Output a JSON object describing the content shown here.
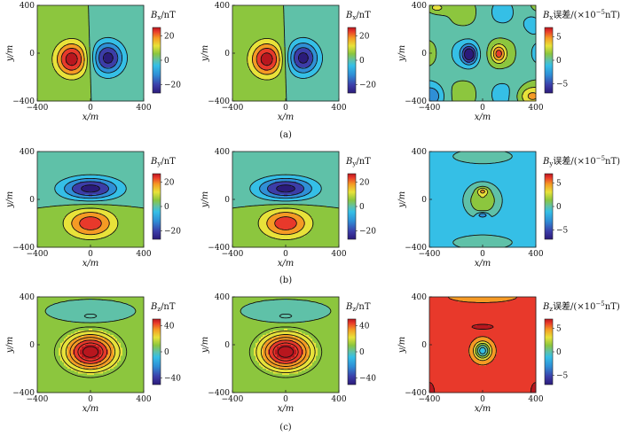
{
  "captions": [
    "(a)",
    "(b)",
    "(c)"
  ],
  "panel_rows": [
    {
      "caption": "(a)",
      "panels": [
        {
          "kind": "field",
          "component": "x",
          "cb_label": "Bx/nT",
          "cb_sym": "B",
          "cb_sub": "x",
          "cb_rest": "/nT",
          "cb_ticks": [
            "20",
            "0",
            "−20"
          ],
          "cb_tick_values": [
            20,
            0,
            -20
          ],
          "cb_range": [
            -27,
            27
          ]
        },
        {
          "kind": "field",
          "component": "x",
          "cb_label": "Bx/nT",
          "cb_sym": "B",
          "cb_sub": "x",
          "cb_rest": "/nT",
          "cb_ticks": [
            "20",
            "0",
            "−20"
          ],
          "cb_tick_values": [
            20,
            0,
            -20
          ],
          "cb_range": [
            -27,
            27
          ]
        },
        {
          "kind": "error",
          "component": "x",
          "cb_label": "Bx误差/(×10⁻⁵nT)",
          "cb_sym": "B",
          "cb_sub": "x",
          "cb_rest": "误差/(×10",
          "cb_exp": "−5",
          "cb_unit": "nT)",
          "cb_ticks": [
            "5",
            "0",
            "−5"
          ],
          "cb_tick_values": [
            5,
            0,
            -5
          ],
          "cb_range": [
            -7,
            7
          ]
        }
      ]
    },
    {
      "caption": "(b)",
      "panels": [
        {
          "kind": "field",
          "component": "y",
          "cb_label": "By/nT",
          "cb_sym": "B",
          "cb_sub": "y",
          "cb_rest": "/nT",
          "cb_ticks": [
            "20",
            "0",
            "−20"
          ],
          "cb_tick_values": [
            20,
            0,
            -20
          ],
          "cb_range": [
            -27,
            27
          ]
        },
        {
          "kind": "field",
          "component": "y",
          "cb_label": "By/nT",
          "cb_sym": "B",
          "cb_sub": "y",
          "cb_rest": "/nT",
          "cb_ticks": [
            "20",
            "0",
            "−20"
          ],
          "cb_tick_values": [
            20,
            0,
            -20
          ],
          "cb_range": [
            -27,
            27
          ]
        },
        {
          "kind": "error",
          "component": "y",
          "cb_label": "By误差/(×10⁻⁵nT)",
          "cb_sym": "B",
          "cb_sub": "y",
          "cb_rest": "误差/(×10",
          "cb_exp": "−5",
          "cb_unit": "nT)",
          "cb_ticks": [
            "5",
            "0",
            "−5"
          ],
          "cb_tick_values": [
            5,
            0,
            -5
          ],
          "cb_range": [
            -7,
            7
          ]
        }
      ]
    },
    {
      "caption": "(c)",
      "panels": [
        {
          "kind": "field",
          "component": "z",
          "cb_label": "Bz/nT",
          "cb_sym": "B",
          "cb_sub": "z",
          "cb_rest": "/nT",
          "cb_ticks": [
            "40",
            "0",
            "−40"
          ],
          "cb_tick_values": [
            40,
            0,
            -40
          ],
          "cb_range": [
            -50,
            50
          ]
        },
        {
          "kind": "field",
          "component": "z",
          "cb_label": "Bz/nT",
          "cb_sym": "B",
          "cb_sub": "z",
          "cb_rest": "/nT",
          "cb_ticks": [
            "40",
            "0",
            "−40"
          ],
          "cb_tick_values": [
            40,
            0,
            -40
          ],
          "cb_range": [
            -50,
            50
          ]
        },
        {
          "kind": "error",
          "component": "z",
          "cb_label": "Bz误差/(×10⁻⁵nT)",
          "cb_sym": "B",
          "cb_sub": "z",
          "cb_rest": "误差/(×10",
          "cb_exp": "−5",
          "cb_unit": "nT)",
          "cb_ticks": [
            "5",
            "0",
            "−5"
          ],
          "cb_tick_values": [
            5,
            0,
            -5
          ],
          "cb_range": [
            -7,
            7
          ]
        }
      ]
    }
  ],
  "chart_data": {
    "type": "heatmap",
    "x_label": "x/m",
    "y_label": "y/m",
    "xlim": [
      -400,
      400
    ],
    "ylim": [
      -400,
      400
    ],
    "x_ticks": [
      "−400",
      "0",
      "400"
    ],
    "x_tick_values": [
      -400,
      0,
      400
    ],
    "y_ticks": [
      "400",
      "0",
      "−400"
    ],
    "y_tick_values": [
      400,
      0,
      -400
    ],
    "grid": false,
    "colormap": [
      "#2b1b7a",
      "#3c3da8",
      "#2f8fd6",
      "#35bfe6",
      "#5fc1a8",
      "#8cc63e",
      "#e8e23a",
      "#f59a24",
      "#e8392b",
      "#b8161e"
    ],
    "fields": {
      "x": {
        "desc": "dipole pair",
        "positive_center": [
          -140,
          -50
        ],
        "negative_center": [
          130,
          -40
        ],
        "peak_nT": [
          25,
          -24
        ]
      },
      "y": {
        "positive_center": [
          0,
          -200
        ],
        "negative_center": [
          0,
          90
        ],
        "peak_nT": [
          20,
          -24
        ]
      },
      "z": {
        "positive_center": [
          0,
          -60
        ],
        "negative_center": [
          0,
          230
        ],
        "peak_nT": [
          48,
          -8
        ]
      }
    },
    "errors": {
      "x": {
        "features": [
          {
            "x": -100,
            "y": -10,
            "value_e5nT": -6
          },
          {
            "x": 120,
            "y": -5,
            "value_e5nT": 4
          }
        ]
      },
      "y": {
        "features": [
          {
            "x": 0,
            "y": 70,
            "value_e5nT": 3
          },
          {
            "x": 0,
            "y": -130,
            "value_e5nT": -5
          }
        ]
      },
      "z": {
        "features": [
          {
            "x": 0,
            "y": -50,
            "value_e5nT": -2
          },
          {
            "x": 0,
            "y": 150,
            "value_e5nT": 4
          }
        ]
      }
    }
  }
}
